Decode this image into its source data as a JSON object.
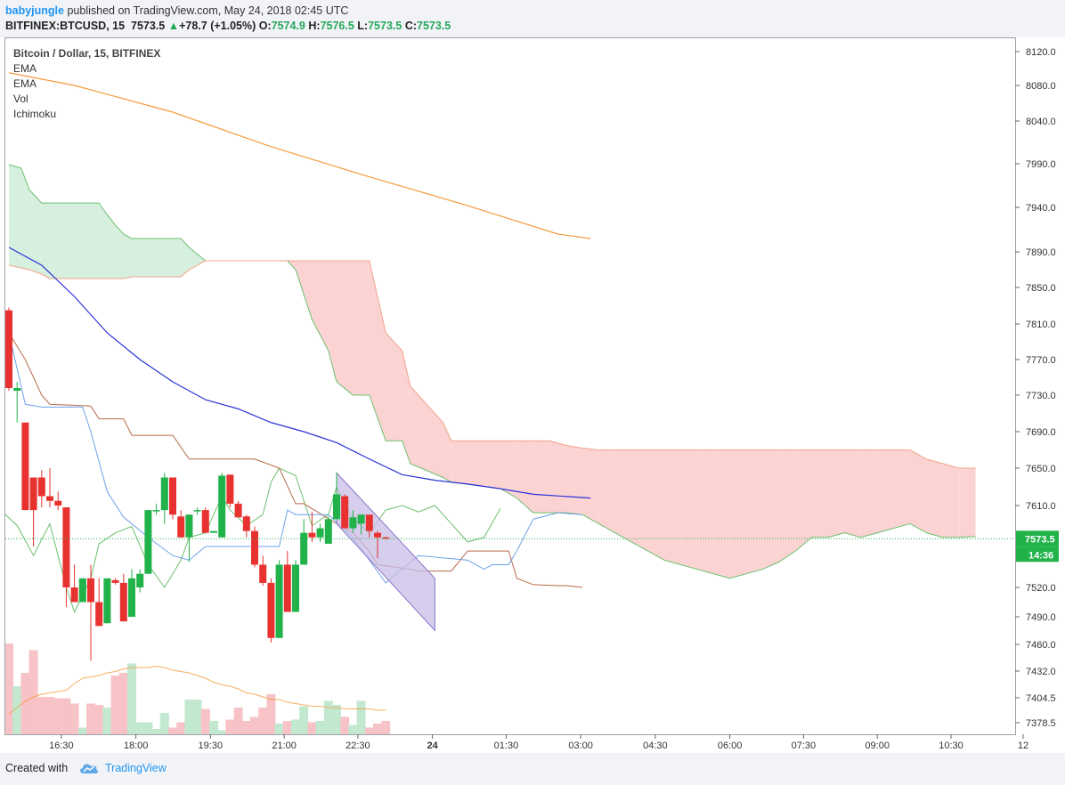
{
  "header": {
    "user": "babyjungle",
    "published_text": "published on TradingView.com, May 24, 2018 02:45 UTC",
    "symbol": "BITFINEX:BTCUSD, 15",
    "last": "7573.5",
    "change": "+78.7 (+1.05%)",
    "open_label": "O:",
    "open": "7574.9",
    "high_label": "H:",
    "high": "7576.5",
    "low_label": "L:",
    "low": "7573.5",
    "close_label": "C:",
    "close": "7573.5"
  },
  "legend": {
    "title": "Bitcoin / Dollar, 15, BITFINEX",
    "items": [
      "EMA",
      "EMA",
      "Vol",
      "Ichimoku"
    ]
  },
  "footer": {
    "created_with": "Created with",
    "brand": "TradingView"
  },
  "chart_data": {
    "type": "candlestick",
    "title": "Bitcoin / Dollar, 15, BITFINEX",
    "interval_minutes": 15,
    "y_ticks": [
      "8120.0",
      "8080.0",
      "8040.0",
      "7990.0",
      "7940.0",
      "7890.0",
      "7850.0",
      "7810.0",
      "7770.0",
      "7730.0",
      "7690.0",
      "7650.0",
      "7610.0",
      "7573.5",
      "7520.0",
      "7490.0",
      "7460.0",
      "7432.0",
      "7404.5",
      "7378.5"
    ],
    "x_ticks": [
      "16:30",
      "18:00",
      "19:30",
      "21:00",
      "22:30",
      "24",
      "01:30",
      "03:00",
      "04:30",
      "06:00",
      "07:30",
      "09:00",
      "10:30",
      "12"
    ],
    "price_label": "7573.5",
    "countdown_label": "14:36",
    "last_price": 7573.5,
    "ohlc": [
      [
        7825,
        7828,
        7735,
        7738
      ],
      [
        7735,
        7745,
        7700,
        7738
      ],
      [
        7700,
        7700,
        7605,
        7605
      ],
      [
        7640,
        7640,
        7565,
        7605
      ],
      [
        7640,
        7648,
        7608,
        7620
      ],
      [
        7620,
        7650,
        7608,
        7615
      ],
      [
        7615,
        7625,
        7605,
        7610
      ],
      [
        7608,
        7608,
        7500,
        7520
      ],
      [
        7520,
        7545,
        7505,
        7505
      ],
      [
        7505,
        7530,
        7505,
        7530
      ],
      [
        7530,
        7545,
        7443,
        7505
      ],
      [
        7505,
        7530,
        7480,
        7480
      ],
      [
        7483,
        7530,
        7483,
        7530
      ],
      [
        7528,
        7530,
        7523,
        7525
      ],
      [
        7525,
        7535,
        7485,
        7485
      ],
      [
        7490,
        7540,
        7490,
        7530
      ],
      [
        7520,
        7540,
        7515,
        7535
      ],
      [
        7535,
        7605,
        7535,
        7605
      ],
      [
        7605,
        7612,
        7600,
        7605
      ],
      [
        7605,
        7645,
        7590,
        7640
      ],
      [
        7640,
        7640,
        7595,
        7600
      ],
      [
        7598,
        7605,
        7575,
        7575
      ],
      [
        7575,
        7600,
        7548,
        7600
      ],
      [
        7605,
        7608,
        7600,
        7605
      ],
      [
        7605,
        7608,
        7580,
        7580
      ],
      [
        7580,
        7582,
        7580,
        7582
      ],
      [
        7575,
        7645,
        7575,
        7642
      ],
      [
        7643,
        7643,
        7608,
        7612
      ],
      [
        7612,
        7615,
        7597,
        7597
      ],
      [
        7598,
        7600,
        7575,
        7582
      ],
      [
        7582,
        7587,
        7542,
        7545
      ],
      [
        7545,
        7555,
        7522,
        7525
      ],
      [
        7525,
        7530,
        7462,
        7467
      ],
      [
        7467,
        7550,
        7467,
        7545
      ],
      [
        7545,
        7560,
        7495,
        7495
      ],
      [
        7495,
        7550,
        7495,
        7545
      ],
      [
        7545,
        7595,
        7545,
        7580
      ],
      [
        7580,
        7603,
        7570,
        7575
      ],
      [
        7575,
        7590,
        7570,
        7585
      ],
      [
        7568,
        7598,
        7568,
        7595
      ],
      [
        7595,
        7645,
        7595,
        7622
      ],
      [
        7620,
        7622,
        7585,
        7585
      ],
      [
        7585,
        7605,
        7580,
        7597
      ],
      [
        7590,
        7600,
        7578,
        7600
      ],
      [
        7600,
        7600,
        7575,
        7582
      ],
      [
        7580,
        7582,
        7552,
        7575
      ],
      [
        7575,
        7576,
        7573,
        7574
      ]
    ],
    "volume_relative": [
      0.68,
      0.36,
      0.46,
      0.63,
      0.28,
      0.28,
      0.27,
      0.27,
      0.23,
      0.05,
      0.23,
      0.22,
      0.2,
      0.44,
      0.46,
      0.53,
      0.09,
      0.09,
      0.04,
      0.16,
      0.05,
      0.09,
      0.26,
      0.26,
      0.19,
      0.1,
      0.03,
      0.11,
      0.2,
      0.1,
      0.13,
      0.2,
      0.3,
      0.08,
      0.1,
      0.11,
      0.21,
      0.09,
      0.1,
      0.25,
      0.22,
      0.13,
      0.07,
      0.25,
      0.05,
      0.08,
      0.1
    ],
    "ema_long": [
      [
        0,
        8095
      ],
      [
        8,
        8080
      ],
      [
        20,
        8050
      ],
      [
        32,
        8010
      ],
      [
        44,
        7975
      ],
      [
        56,
        7942
      ],
      [
        67,
        7910
      ],
      [
        71,
        7905
      ]
    ],
    "ema_short": [
      [
        0,
        7895
      ],
      [
        4,
        7875
      ],
      [
        8,
        7840
      ],
      [
        12,
        7800
      ],
      [
        16,
        7770
      ],
      [
        20,
        7745
      ],
      [
        24,
        7725
      ],
      [
        28,
        7715
      ],
      [
        32,
        7700
      ],
      [
        36,
        7690
      ],
      [
        40,
        7678
      ],
      [
        44,
        7660
      ],
      [
        48,
        7643
      ],
      [
        52,
        7637
      ],
      [
        56,
        7633
      ],
      [
        60,
        7628
      ],
      [
        64,
        7622
      ],
      [
        71,
        7618
      ]
    ],
    "conversion_line": [
      [
        0,
        7800
      ],
      [
        2,
        7720
      ],
      [
        4,
        7717
      ],
      [
        9,
        7717
      ],
      [
        10,
        7690
      ],
      [
        12,
        7625
      ],
      [
        14,
        7597
      ],
      [
        15,
        7590
      ],
      [
        17,
        7575
      ],
      [
        20,
        7555
      ],
      [
        22,
        7550
      ],
      [
        24,
        7565
      ],
      [
        28,
        7565
      ],
      [
        33,
        7565
      ],
      [
        34,
        7605
      ],
      [
        35,
        7600
      ],
      [
        37,
        7600
      ],
      [
        39,
        7600
      ],
      [
        42,
        7575
      ],
      [
        46,
        7525
      ],
      [
        50,
        7555
      ],
      [
        56,
        7550
      ],
      [
        58,
        7540
      ],
      [
        59,
        7545
      ],
      [
        61,
        7545
      ],
      [
        62,
        7560
      ],
      [
        64,
        7595
      ],
      [
        67,
        7602
      ],
      [
        70,
        7600
      ]
    ],
    "base_line": [
      [
        0,
        7800
      ],
      [
        1,
        7785
      ],
      [
        2,
        7770
      ],
      [
        4,
        7730
      ],
      [
        5,
        7720
      ],
      [
        10,
        7718
      ],
      [
        11,
        7704
      ],
      [
        14,
        7704
      ],
      [
        15,
        7686
      ],
      [
        20,
        7686
      ],
      [
        22,
        7660
      ],
      [
        30,
        7660
      ],
      [
        33,
        7650
      ],
      [
        35,
        7612
      ],
      [
        36,
        7612
      ],
      [
        40,
        7590
      ],
      [
        42,
        7580
      ],
      [
        44,
        7560
      ],
      [
        45,
        7545
      ],
      [
        49,
        7540
      ],
      [
        50,
        7538
      ],
      [
        54,
        7538
      ],
      [
        56,
        7560
      ],
      [
        60,
        7560
      ],
      [
        61,
        7560
      ],
      [
        62,
        7530
      ],
      [
        64,
        7523
      ],
      [
        67,
        7522
      ],
      [
        68,
        7522
      ],
      [
        70,
        7520
      ]
    ],
    "lagging_span": [
      [
        -2,
        7610
      ],
      [
        -1,
        7605
      ],
      [
        1,
        7588
      ],
      [
        3,
        7555
      ],
      [
        5,
        7590
      ],
      [
        7,
        7520
      ],
      [
        8,
        7495
      ],
      [
        10,
        7530
      ],
      [
        11,
        7568
      ],
      [
        13,
        7580
      ],
      [
        15,
        7587
      ],
      [
        17,
        7545
      ],
      [
        19,
        7520
      ],
      [
        21,
        7550
      ],
      [
        22,
        7575
      ],
      [
        24,
        7580
      ],
      [
        25,
        7600
      ],
      [
        26,
        7620
      ],
      [
        27,
        7605
      ],
      [
        29,
        7588
      ],
      [
        31,
        7600
      ],
      [
        32,
        7635
      ],
      [
        33,
        7650
      ],
      [
        35,
        7642
      ],
      [
        37,
        7588
      ],
      [
        39,
        7600
      ],
      [
        40,
        7630
      ],
      [
        42,
        7595
      ],
      [
        44,
        7580
      ],
      [
        46,
        7605
      ],
      [
        48,
        7610
      ],
      [
        50,
        7603
      ],
      [
        52,
        7610
      ],
      [
        54,
        7590
      ],
      [
        56,
        7570
      ],
      [
        58,
        7575
      ],
      [
        60,
        7607
      ]
    ],
    "cloud": {
      "x": [
        0,
        1.5,
        2.5,
        4,
        5,
        10,
        11,
        11.5,
        13,
        14,
        15,
        21,
        22,
        24,
        25,
        33,
        34,
        35,
        37,
        39,
        40,
        42,
        44,
        46,
        48,
        49,
        53,
        54,
        60,
        62,
        64,
        66,
        68,
        70,
        72,
        74,
        76,
        78,
        80,
        82,
        84,
        86,
        88,
        92,
        94,
        96,
        98,
        100,
        102,
        104,
        106,
        108,
        110,
        112,
        114,
        116,
        118
      ],
      "span_a": [
        7989,
        7985,
        7960,
        7945,
        7945,
        7945,
        7945,
        7938,
        7920,
        7910,
        7905,
        7905,
        7895,
        7880,
        7880,
        7880,
        7880,
        7870,
        7815,
        7780,
        7745,
        7730,
        7730,
        7680,
        7680,
        7655,
        7640,
        7635,
        7628,
        7618,
        7602,
        7602,
        7602,
        7600,
        7590,
        7580,
        7570,
        7560,
        7550,
        7545,
        7540,
        7535,
        7530,
        7540,
        7548,
        7560,
        7575,
        7575,
        7580,
        7575,
        7580,
        7585,
        7590,
        7580,
        7575,
        7575,
        7576
      ],
      "span_b": [
        7875,
        7872,
        7870,
        7865,
        7860,
        7860,
        7860,
        7860,
        7860,
        7860,
        7862,
        7862,
        7870,
        7880,
        7880,
        7880,
        7880,
        7880,
        7880,
        7880,
        7880,
        7880,
        7880,
        7800,
        7780,
        7740,
        7700,
        7680,
        7680,
        7680,
        7680,
        7680,
        7675,
        7672,
        7670,
        7670,
        7670,
        7670,
        7670,
        7670,
        7670,
        7670,
        7670,
        7670,
        7670,
        7670,
        7670,
        7670,
        7670,
        7670,
        7670,
        7670,
        7670,
        7660,
        7655,
        7650,
        7650
      ]
    },
    "channel_upper": [
      [
        40,
        7645
      ],
      [
        52,
        7530
      ]
    ],
    "channel_lower": [
      [
        40,
        7590
      ],
      [
        52,
        7475
      ]
    ],
    "volume_ma": [
      0.15,
      0.2,
      0.25,
      0.28,
      0.3,
      0.31,
      0.32,
      0.33,
      0.38,
      0.42,
      0.43,
      0.44,
      0.46,
      0.47,
      0.49,
      0.5,
      0.5,
      0.5,
      0.51,
      0.5,
      0.48,
      0.47,
      0.46,
      0.44,
      0.42,
      0.39,
      0.37,
      0.36,
      0.34,
      0.31,
      0.3,
      0.28,
      0.26,
      0.26,
      0.24,
      0.23,
      0.22,
      0.21,
      0.21,
      0.2,
      0.2,
      0.19,
      0.19,
      0.19,
      0.19,
      0.18,
      0.18
    ],
    "colors": {
      "up": "#21b24a",
      "down": "#e8322f",
      "up_volume": "#c2e8d0",
      "down_volume": "#f7c3c6",
      "ema_long": "#f59a3c",
      "ema_short": "#2a33d6",
      "conversion": "#6ea0e8",
      "base": "#b86a4a",
      "lagging": "#6cbf6e",
      "cloud_bear_fill": "#fcd3d3",
      "cloud_bull_fill": "#d6efdf",
      "channel_fill": "#c8bde6",
      "channel_line": "#8b76c9",
      "price_line": "#21b24a"
    }
  }
}
